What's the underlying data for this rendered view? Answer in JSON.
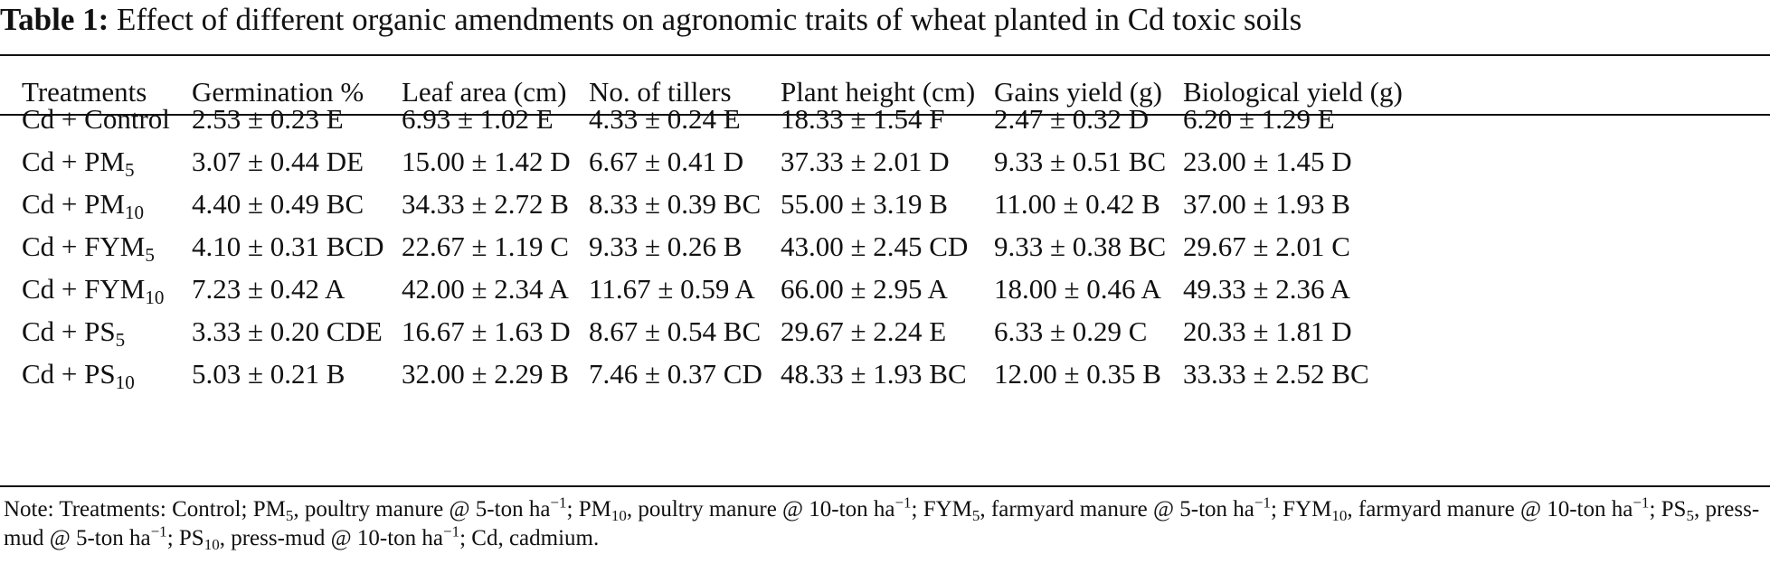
{
  "table": {
    "caption_label": "Table 1:",
    "caption_text": "Effect of different organic amendments on agronomic traits of wheat planted in Cd toxic soils",
    "headers": [
      "Treatments",
      "Germination %",
      "Leaf area (cm)",
      "No. of tillers",
      "Plant height (cm)",
      "Gains yield (g)",
      "Biological yield (g)"
    ],
    "rows": [
      {
        "treatment": {
          "base": "Cd + Control",
          "sub": ""
        },
        "values": [
          "2.53 ± 0.23 E",
          "6.93 ± 1.02 E",
          "4.33 ± 0.24 E",
          "18.33 ± 1.54 F",
          "2.47 ± 0.32 D",
          "6.20 ± 1.29 E"
        ]
      },
      {
        "treatment": {
          "base": "Cd + PM",
          "sub": "5"
        },
        "values": [
          "3.07 ± 0.44 DE",
          "15.00 ± 1.42 D",
          "6.67 ± 0.41 D",
          "37.33 ± 2.01 D",
          "9.33 ± 0.51 BC",
          "23.00 ± 1.45 D"
        ]
      },
      {
        "treatment": {
          "base": "Cd + PM",
          "sub": "10"
        },
        "values": [
          "4.40 ± 0.49 BC",
          "34.33 ± 2.72 B",
          "8.33 ± 0.39 BC",
          "55.00 ± 3.19 B",
          "11.00 ± 0.42 B",
          "37.00 ± 1.93 B"
        ]
      },
      {
        "treatment": {
          "base": "Cd + FYM",
          "sub": "5"
        },
        "values": [
          "4.10 ± 0.31 BCD",
          "22.67 ± 1.19 C",
          "9.33 ± 0.26 B",
          "43.00 ± 2.45 CD",
          "9.33 ± 0.38 BC",
          "29.67 ± 2.01 C"
        ]
      },
      {
        "treatment": {
          "base": "Cd + FYM",
          "sub": "10"
        },
        "values": [
          "7.23 ± 0.42 A",
          "42.00 ± 2.34 A",
          "11.67 ± 0.59 A",
          "66.00 ± 2.95 A",
          "18.00 ± 0.46 A",
          "49.33 ± 2.36 A"
        ]
      },
      {
        "treatment": {
          "base": "Cd + PS",
          "sub": "5"
        },
        "values": [
          "3.33 ± 0.20 CDE",
          "16.67 ± 1.63 D",
          "8.67 ± 0.54 BC",
          "29.67 ± 2.24 E",
          "6.33 ± 0.29 C",
          "20.33 ± 1.81 D"
        ]
      },
      {
        "treatment": {
          "base": "Cd + PS",
          "sub": "10"
        },
        "values": [
          "5.03 ± 0.21 B",
          "32.00 ± 2.29 B",
          "7.46 ± 0.37 CD",
          "48.33 ± 1.93 BC",
          "12.00 ± 0.35 B",
          "33.33 ± 2.52 BC"
        ]
      }
    ],
    "note": [
      {
        "t": "Note: Treatments: Control; PM"
      },
      {
        "sub": "5"
      },
      {
        "t": ", poultry manure @ 5-ton ha"
      },
      {
        "sup": "−1"
      },
      {
        "t": "; PM"
      },
      {
        "sub": "10"
      },
      {
        "t": ", poultry manure @ 10-ton ha"
      },
      {
        "sup": "−1"
      },
      {
        "t": "; FYM"
      },
      {
        "sub": "5"
      },
      {
        "t": ", farmyard manure @ 5-ton ha"
      },
      {
        "sup": "−1"
      },
      {
        "t": "; FYM"
      },
      {
        "sub": "10"
      },
      {
        "t": ", farmyard manure @ 10-ton ha"
      },
      {
        "sup": "−1"
      },
      {
        "t": "; PS"
      },
      {
        "sub": "5"
      },
      {
        "t": ", press-mud @ 5-ton ha"
      },
      {
        "sup": "−1"
      },
      {
        "t": "; PS"
      },
      {
        "sub": "10"
      },
      {
        "t": ", press-mud @ 10-ton ha"
      },
      {
        "sup": "−1"
      },
      {
        "t": "; Cd, cadmium."
      }
    ]
  }
}
